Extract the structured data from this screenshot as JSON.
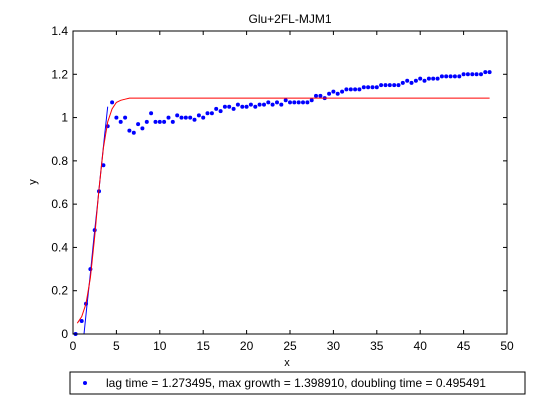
{
  "chart_data": {
    "type": "scatter",
    "title": "Glu+2FL-MJM1",
    "xlabel": "x",
    "ylabel": "y",
    "xlim": [
      0,
      50
    ],
    "ylim": [
      0,
      1.4
    ],
    "xticks": [
      0,
      5,
      10,
      15,
      20,
      25,
      30,
      35,
      40,
      45,
      50
    ],
    "yticks": [
      0,
      0.2,
      0.4,
      0.6,
      0.8,
      1,
      1.2,
      1.4
    ],
    "xtick_labels": [
      "0",
      "5",
      "10",
      "15",
      "20",
      "25",
      "30",
      "35",
      "40",
      "45",
      "50"
    ],
    "ytick_labels": [
      "0",
      "0.2",
      "0.4",
      "0.6",
      "0.8",
      "1",
      "1.2",
      "1.4"
    ],
    "grid": false,
    "legend_position": "below-plot",
    "legend": [
      "lag time = 1.273495, max growth = 1.398910, doubling time = 0.495491"
    ],
    "series": [
      {
        "kind": "points",
        "marker": "dot",
        "color": "#0000FF",
        "x": [
          0.3,
          1.0,
          1.5,
          2.0,
          2.5,
          3.0,
          3.5,
          4.0,
          4.5,
          5.0,
          5.5,
          6.0,
          6.5,
          7.0,
          7.5,
          8.0,
          8.5,
          9.0,
          9.5,
          10.0,
          10.5,
          11.0,
          11.5,
          12.0,
          12.5,
          13.0,
          13.5,
          14.0,
          14.5,
          15.0,
          15.5,
          16.0,
          16.5,
          17.0,
          17.5,
          18.0,
          18.5,
          19.0,
          19.5,
          20.0,
          20.5,
          21.0,
          21.5,
          22.0,
          22.5,
          23.0,
          23.5,
          24.0,
          24.5,
          25.0,
          25.5,
          26.0,
          26.5,
          27.0,
          27.5,
          28.0,
          28.5,
          29.0,
          29.5,
          30.0,
          30.5,
          31.0,
          31.5,
          32.0,
          32.5,
          33.0,
          33.5,
          34.0,
          34.5,
          35.0,
          35.5,
          36.0,
          36.5,
          37.0,
          37.5,
          38.0,
          38.5,
          39.0,
          39.5,
          40.0,
          40.5,
          41.0,
          41.5,
          42.0,
          42.5,
          43.0,
          43.5,
          44.0,
          44.5,
          45.0,
          45.5,
          46.0,
          46.5,
          47.0,
          47.5,
          48.0
        ],
        "y": [
          0.0,
          0.06,
          0.14,
          0.3,
          0.48,
          0.66,
          0.78,
          0.96,
          1.07,
          1.0,
          0.98,
          1.0,
          0.94,
          0.93,
          0.97,
          0.95,
          0.98,
          1.02,
          0.98,
          0.98,
          0.98,
          1.0,
          0.98,
          1.01,
          1.0,
          1.0,
          1.0,
          0.99,
          1.01,
          1.0,
          1.02,
          1.02,
          1.04,
          1.03,
          1.05,
          1.05,
          1.04,
          1.06,
          1.05,
          1.05,
          1.06,
          1.05,
          1.06,
          1.06,
          1.07,
          1.06,
          1.07,
          1.06,
          1.08,
          1.07,
          1.07,
          1.07,
          1.07,
          1.07,
          1.08,
          1.1,
          1.1,
          1.09,
          1.11,
          1.12,
          1.11,
          1.12,
          1.13,
          1.13,
          1.13,
          1.13,
          1.14,
          1.14,
          1.14,
          1.14,
          1.15,
          1.15,
          1.15,
          1.15,
          1.15,
          1.16,
          1.17,
          1.16,
          1.17,
          1.18,
          1.17,
          1.18,
          1.18,
          1.18,
          1.19,
          1.19,
          1.19,
          1.19,
          1.19,
          1.2,
          1.2,
          1.2,
          1.2,
          1.2,
          1.21,
          1.21
        ]
      },
      {
        "kind": "line",
        "color": "#0000FF",
        "x": [
          1.27,
          1.6,
          2.0,
          2.4,
          2.8,
          3.2,
          3.6,
          4.0
        ],
        "y": [
          0.0,
          0.13,
          0.28,
          0.44,
          0.59,
          0.75,
          0.9,
          1.05
        ]
      },
      {
        "kind": "line",
        "color": "#FF0000",
        "x": [
          0.5,
          1.0,
          1.5,
          2.0,
          2.5,
          3.0,
          3.5,
          4.0,
          4.5,
          5.0,
          5.5,
          6.0,
          6.5,
          7.0,
          7.5,
          8.0,
          9.0,
          10.0,
          15.0,
          20.0,
          25.0,
          30.0,
          35.0,
          40.0,
          45.0,
          48.0
        ],
        "y": [
          0.05,
          0.08,
          0.14,
          0.26,
          0.45,
          0.67,
          0.86,
          0.98,
          1.04,
          1.07,
          1.08,
          1.085,
          1.09,
          1.09,
          1.09,
          1.09,
          1.09,
          1.09,
          1.09,
          1.09,
          1.09,
          1.09,
          1.09,
          1.09,
          1.09,
          1.09
        ]
      }
    ]
  }
}
